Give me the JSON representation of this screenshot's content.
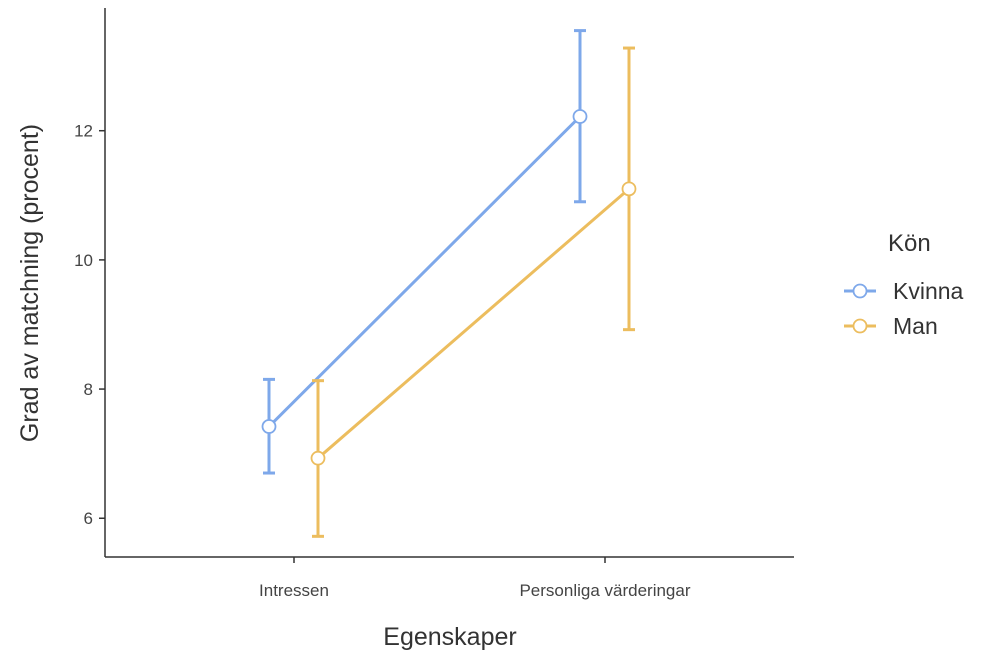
{
  "chart_data": {
    "type": "line",
    "title": "",
    "xlabel": "Egenskaper",
    "ylabel": "Grad av matchning (procent)",
    "categories": [
      "Intressen",
      "Personliga värderingar"
    ],
    "ylim": [
      5.4,
      13.9
    ],
    "yticks": [
      6,
      8,
      10,
      12
    ],
    "grid": false,
    "legend": {
      "title": "Kön",
      "position": "right"
    },
    "series": [
      {
        "name": "Kvinna",
        "color": "#7ea8ea",
        "values": [
          7.42,
          12.22
        ],
        "lower": [
          6.7,
          10.9
        ],
        "upper": [
          8.15,
          13.55
        ]
      },
      {
        "name": "Man",
        "color": "#ecbd5e",
        "values": [
          6.93,
          11.1
        ],
        "lower": [
          5.72,
          8.92
        ],
        "upper": [
          8.13,
          13.28
        ]
      }
    ]
  }
}
